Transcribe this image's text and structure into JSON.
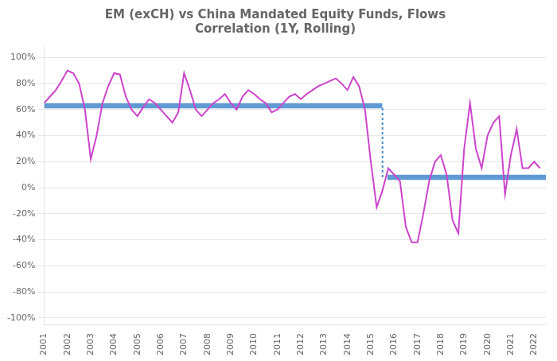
{
  "chart_data": {
    "type": "line",
    "title": "EM (exCH) vs China Mandated Equity Funds, Flows\nCorrelation (1Y, Rolling)",
    "x": [
      2001.0,
      2001.25,
      2001.5,
      2001.75,
      2002.0,
      2002.25,
      2002.5,
      2002.75,
      2003.0,
      2003.25,
      2003.5,
      2003.75,
      2004.0,
      2004.25,
      2004.5,
      2004.75,
      2005.0,
      2005.25,
      2005.5,
      2005.75,
      2006.0,
      2006.25,
      2006.5,
      2006.75,
      2007.0,
      2007.25,
      2007.5,
      2007.75,
      2008.0,
      2008.25,
      2008.5,
      2008.75,
      2009.0,
      2009.25,
      2009.5,
      2009.75,
      2010.0,
      2010.25,
      2010.5,
      2010.75,
      2011.0,
      2011.25,
      2011.5,
      2011.75,
      2012.0,
      2012.25,
      2012.5,
      2012.75,
      2013.0,
      2013.25,
      2013.5,
      2013.75,
      2014.0,
      2014.25,
      2014.5,
      2014.75,
      2015.0,
      2015.25,
      2015.5,
      2015.75,
      2016.0,
      2016.25,
      2016.5,
      2016.75,
      2017.0,
      2017.25,
      2017.5,
      2017.75,
      2018.0,
      2018.25,
      2018.5,
      2018.75,
      2019.0,
      2019.25,
      2019.5,
      2019.75,
      2020.0,
      2020.25,
      2020.5,
      2020.75,
      2021.0,
      2021.25,
      2021.5,
      2021.75,
      2022.0,
      2022.25
    ],
    "values": [
      0.65,
      0.7,
      0.75,
      0.82,
      0.9,
      0.88,
      0.8,
      0.6,
      0.22,
      0.4,
      0.65,
      0.78,
      0.88,
      0.87,
      0.7,
      0.6,
      0.55,
      0.62,
      0.68,
      0.65,
      0.6,
      0.55,
      0.5,
      0.58,
      0.88,
      0.75,
      0.6,
      0.55,
      0.6,
      0.65,
      0.68,
      0.72,
      0.65,
      0.6,
      0.7,
      0.75,
      0.72,
      0.68,
      0.65,
      0.58,
      0.6,
      0.65,
      0.7,
      0.72,
      0.68,
      0.72,
      0.75,
      0.78,
      0.8,
      0.82,
      0.84,
      0.8,
      0.75,
      0.85,
      0.78,
      0.6,
      0.2,
      -0.15,
      -0.02,
      0.15,
      0.1,
      0.05,
      -0.3,
      -0.42,
      -0.42,
      -0.2,
      0.05,
      0.2,
      0.25,
      0.1,
      -0.25,
      -0.35,
      0.3,
      0.65,
      0.3,
      0.15,
      0.4,
      0.5,
      0.55,
      -0.05,
      0.25,
      0.45,
      0.15,
      0.15,
      0.2,
      0.15
    ],
    "color": "#cc44cc",
    "bands": [
      {
        "x": [
          2001,
          2015.5
        ],
        "y": [
          0.61,
          0.65
        ],
        "color": "#4488cc"
      },
      {
        "x": [
          2015.7,
          2022.5
        ],
        "y": [
          0.06,
          0.1
        ],
        "color": "#4488cc"
      }
    ],
    "connector": {
      "x": 2015.5,
      "y": [
        0.08,
        0.63
      ],
      "color": "#4488cc",
      "line_style": "dotted"
    },
    "xlim": [
      2001,
      2022.5
    ],
    "xticks": [
      2001,
      2002,
      2003,
      2004,
      2005,
      2006,
      2007,
      2008,
      2009,
      2010,
      2011,
      2012,
      2013,
      2014,
      2015,
      2016,
      2017,
      2018,
      2019,
      2020,
      2021,
      2022
    ],
    "ylim": [
      -1.05,
      1.1
    ],
    "yticks": [
      {
        "value": 1.0,
        "label": "100%"
      },
      {
        "value": 0.8,
        "label": "80%"
      },
      {
        "value": 0.6,
        "label": "60%"
      },
      {
        "value": 0.4,
        "label": "40%"
      },
      {
        "value": 0.2,
        "label": "20%"
      },
      {
        "value": 0.0,
        "label": "0%"
      },
      {
        "value": -0.2,
        "label": "-20%"
      },
      {
        "value": -0.4,
        "label": "-40%"
      },
      {
        "value": -0.6,
        "label": "-60%"
      },
      {
        "value": -0.8,
        "label": "-80%"
      },
      {
        "value": -1.0,
        "label": "-100%"
      }
    ],
    "grid": "y"
  }
}
